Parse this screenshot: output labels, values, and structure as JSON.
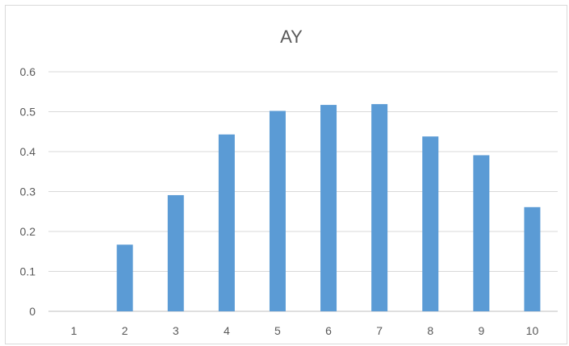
{
  "chart_data": {
    "type": "bar",
    "title": "AY",
    "xlabel": "",
    "ylabel": "",
    "categories": [
      "1",
      "2",
      "3",
      "4",
      "5",
      "6",
      "7",
      "8",
      "9",
      "10"
    ],
    "values": [
      0,
      0.167,
      0.291,
      0.443,
      0.502,
      0.517,
      0.519,
      0.438,
      0.391,
      0.261
    ],
    "ylim": [
      0,
      0.6
    ],
    "yticks": [
      "0",
      "0.1",
      "0.2",
      "0.3",
      "0.4",
      "0.5",
      "0.6"
    ],
    "grid": true,
    "legend": "none",
    "bar_color": "#5b9bd5"
  }
}
